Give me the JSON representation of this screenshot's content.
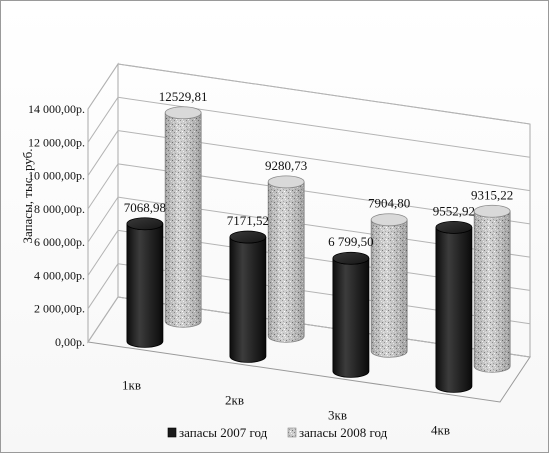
{
  "chart_data": {
    "type": "bar",
    "style": "3d-cylinder",
    "title": "",
    "xlabel": "",
    "ylabel": "Запасы, тыс. руб.",
    "ylim": [
      0,
      14000
    ],
    "yticks": [
      0,
      2000,
      4000,
      6000,
      8000,
      10000,
      12000,
      14000
    ],
    "ytick_labels": [
      "0,00р.",
      "2 000,00р.",
      "4 000,00р.",
      "6 000,00р.",
      "8 000,00р.",
      "10 000,00р.",
      "12 000,00р.",
      "14 000,00р."
    ],
    "categories": [
      "1кв",
      "2кв",
      "3кв",
      "4кв"
    ],
    "series": [
      {
        "name": "запасы 2007 год",
        "color": "#1e1e1e",
        "values": [
          7068.98,
          7171.52,
          6799.5,
          9552.92
        ],
        "labels": [
          "7068,98",
          "7171,52",
          "6 799,50",
          "9552,92"
        ]
      },
      {
        "name": "запасы 2008 год",
        "color": "#c8c8c8",
        "values": [
          12529.81,
          9280.73,
          7904.8,
          9315.22
        ],
        "labels": [
          "12529,81",
          "9280,73",
          "7904,80",
          "9315,22"
        ]
      }
    ],
    "grid": true,
    "legend_position": "bottom"
  }
}
